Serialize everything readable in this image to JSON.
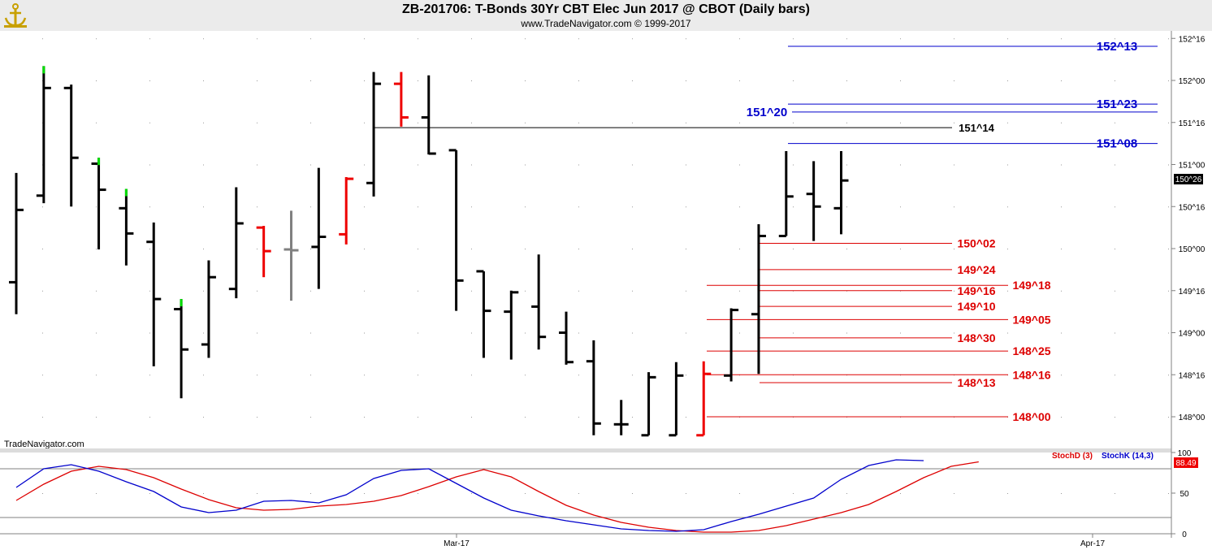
{
  "header": {
    "title": "ZB-201706:  T-Bonds 30Yr CBT Elec Jun 2017 @ CBOT  (Daily bars)",
    "subtitle": "www.TradeNavigator.com © 1999-2017"
  },
  "watermark": "TradeNavigator.com",
  "colors": {
    "bar_default": "#000000",
    "bar_up_close": "#00dd00",
    "bar_down_close": "#ee0000",
    "bar_neutral": "#808080",
    "resistance": "#0000cc",
    "support": "#dd0000",
    "pivot": "#000000",
    "stoch_d": "#dd0000",
    "stoch_k": "#0000cc",
    "header_bg": "#ebebeb"
  },
  "chart_data": [
    {
      "type": "bar",
      "subtype": "ohlc",
      "price_unit": "1/32",
      "ylim": [
        147.75,
        152.28
      ],
      "yticks": [
        "152^16",
        "152^00",
        "151^16",
        "151^00",
        "150^16",
        "150^00",
        "149^16",
        "149^00",
        "148^16",
        "148^00"
      ],
      "xticks": [
        "Mar-17",
        "Apr-17"
      ],
      "last_price": "150^26",
      "bars": [
        {
          "h": 150.9,
          "l": 149.22,
          "o": 149.6,
          "c": 150.46,
          "color": "default"
        },
        {
          "h": 152.17,
          "l": 150.54,
          "o": 150.63,
          "c": 151.91,
          "color": "up"
        },
        {
          "h": 151.95,
          "l": 150.5,
          "o": 151.91,
          "c": 151.08,
          "color": "default"
        },
        {
          "h": 151.08,
          "l": 149.99,
          "o": 151.01,
          "c": 150.7,
          "color": "up"
        },
        {
          "h": 150.71,
          "l": 149.8,
          "o": 150.48,
          "c": 150.18,
          "color": "up"
        },
        {
          "h": 150.31,
          "l": 148.6,
          "o": 150.08,
          "c": 149.4,
          "color": "default"
        },
        {
          "h": 149.4,
          "l": 148.22,
          "o": 149.28,
          "c": 148.8,
          "color": "up"
        },
        {
          "h": 149.86,
          "l": 148.7,
          "o": 148.86,
          "c": 149.66,
          "color": "default"
        },
        {
          "h": 150.73,
          "l": 149.41,
          "o": 149.52,
          "c": 150.3,
          "color": "default"
        },
        {
          "h": 150.27,
          "l": 149.66,
          "o": 150.25,
          "c": 149.97,
          "color": "down"
        },
        {
          "h": 150.45,
          "l": 149.38,
          "o": 149.99,
          "c": 149.98,
          "color": "neutral"
        },
        {
          "h": 150.96,
          "l": 149.52,
          "o": 150.02,
          "c": 150.14,
          "color": "default"
        },
        {
          "h": 150.85,
          "l": 150.05,
          "o": 150.17,
          "c": 150.83,
          "color": "down"
        },
        {
          "h": 152.1,
          "l": 150.62,
          "o": 150.78,
          "c": 151.96,
          "color": "default"
        },
        {
          "h": 152.1,
          "l": 151.45,
          "o": 151.96,
          "c": 151.56,
          "color": "down"
        },
        {
          "h": 152.06,
          "l": 151.12,
          "o": 151.56,
          "c": 151.13,
          "color": "default"
        },
        {
          "h": 151.17,
          "l": 149.26,
          "o": 151.17,
          "c": 149.62,
          "color": "default"
        },
        {
          "h": 149.73,
          "l": 148.7,
          "o": 149.73,
          "c": 149.26,
          "color": "default"
        },
        {
          "h": 149.5,
          "l": 148.68,
          "o": 149.25,
          "c": 149.48,
          "color": "default"
        },
        {
          "h": 149.93,
          "l": 148.8,
          "o": 149.31,
          "c": 148.95,
          "color": "default"
        },
        {
          "h": 149.25,
          "l": 148.62,
          "o": 149.0,
          "c": 148.65,
          "color": "default"
        },
        {
          "h": 148.91,
          "l": 147.78,
          "o": 148.66,
          "c": 147.92,
          "color": "default"
        },
        {
          "h": 148.2,
          "l": 147.78,
          "o": 147.91,
          "c": 147.91,
          "color": "default"
        },
        {
          "h": 148.53,
          "l": 147.78,
          "o": 147.78,
          "c": 148.47,
          "color": "default"
        },
        {
          "h": 148.65,
          "l": 147.78,
          "o": 147.78,
          "c": 148.49,
          "color": "default"
        },
        {
          "h": 148.66,
          "l": 147.78,
          "o": 147.78,
          "c": 148.51,
          "color": "down"
        },
        {
          "h": 149.29,
          "l": 148.42,
          "o": 148.49,
          "c": 149.27,
          "color": "default"
        },
        {
          "h": 150.29,
          "l": 148.51,
          "o": 149.22,
          "c": 150.15,
          "color": "default"
        },
        {
          "h": 151.16,
          "l": 150.15,
          "o": 150.15,
          "c": 150.62,
          "color": "default"
        },
        {
          "h": 151.04,
          "l": 150.09,
          "o": 150.65,
          "c": 150.5,
          "color": "default"
        },
        {
          "h": 151.16,
          "l": 150.17,
          "o": 150.48,
          "c": 150.81,
          "color": "default"
        }
      ],
      "levels": [
        {
          "label": "152^13",
          "value": 152.406,
          "kind": "resistance"
        },
        {
          "label": "151^23",
          "value": 151.719,
          "kind": "resistance"
        },
        {
          "label": "151^20",
          "value": 151.625,
          "kind": "resistance"
        },
        {
          "label": "151^14",
          "value": 151.438,
          "kind": "pivot"
        },
        {
          "label": "151^08",
          "value": 151.25,
          "kind": "resistance"
        },
        {
          "label": "150^02",
          "value": 150.063,
          "kind": "support"
        },
        {
          "label": "149^24",
          "value": 149.75,
          "kind": "support"
        },
        {
          "label": "149^18",
          "value": 149.563,
          "kind": "support"
        },
        {
          "label": "149^16",
          "value": 149.5,
          "kind": "support"
        },
        {
          "label": "149^10",
          "value": 149.313,
          "kind": "support"
        },
        {
          "label": "149^05",
          "value": 149.156,
          "kind": "support"
        },
        {
          "label": "148^30",
          "value": 148.938,
          "kind": "support"
        },
        {
          "label": "148^25",
          "value": 148.781,
          "kind": "support"
        },
        {
          "label": "148^16",
          "value": 148.5,
          "kind": "support"
        },
        {
          "label": "148^13",
          "value": 148.406,
          "kind": "support"
        },
        {
          "label": "148^00",
          "value": 148.0,
          "kind": "support"
        }
      ]
    },
    {
      "type": "line",
      "ylim": [
        0,
        100
      ],
      "yticks": [
        "100",
        "50",
        "0"
      ],
      "reference_lines": [
        80,
        20
      ],
      "last_value": "88.49",
      "series": [
        {
          "name": "StochD (3)",
          "color": "stoch_d",
          "values": [
            41,
            61,
            77,
            83,
            79,
            69,
            55,
            42,
            32,
            29,
            30,
            34,
            36,
            40,
            47,
            58,
            70,
            79,
            70,
            52,
            35,
            23,
            14,
            8,
            4,
            2,
            2,
            4,
            10,
            18,
            26,
            36,
            52,
            69,
            83,
            88.49
          ]
        },
        {
          "name": "StochK (14,3)",
          "color": "stoch_k",
          "values": [
            57,
            80,
            85,
            77,
            64,
            52,
            33,
            26,
            29,
            40,
            41,
            38,
            48,
            68,
            78,
            80,
            62,
            44,
            29,
            22,
            16,
            11,
            6,
            4,
            3,
            5,
            15,
            24,
            34,
            44,
            67,
            84,
            91,
            90
          ]
        }
      ]
    }
  ]
}
